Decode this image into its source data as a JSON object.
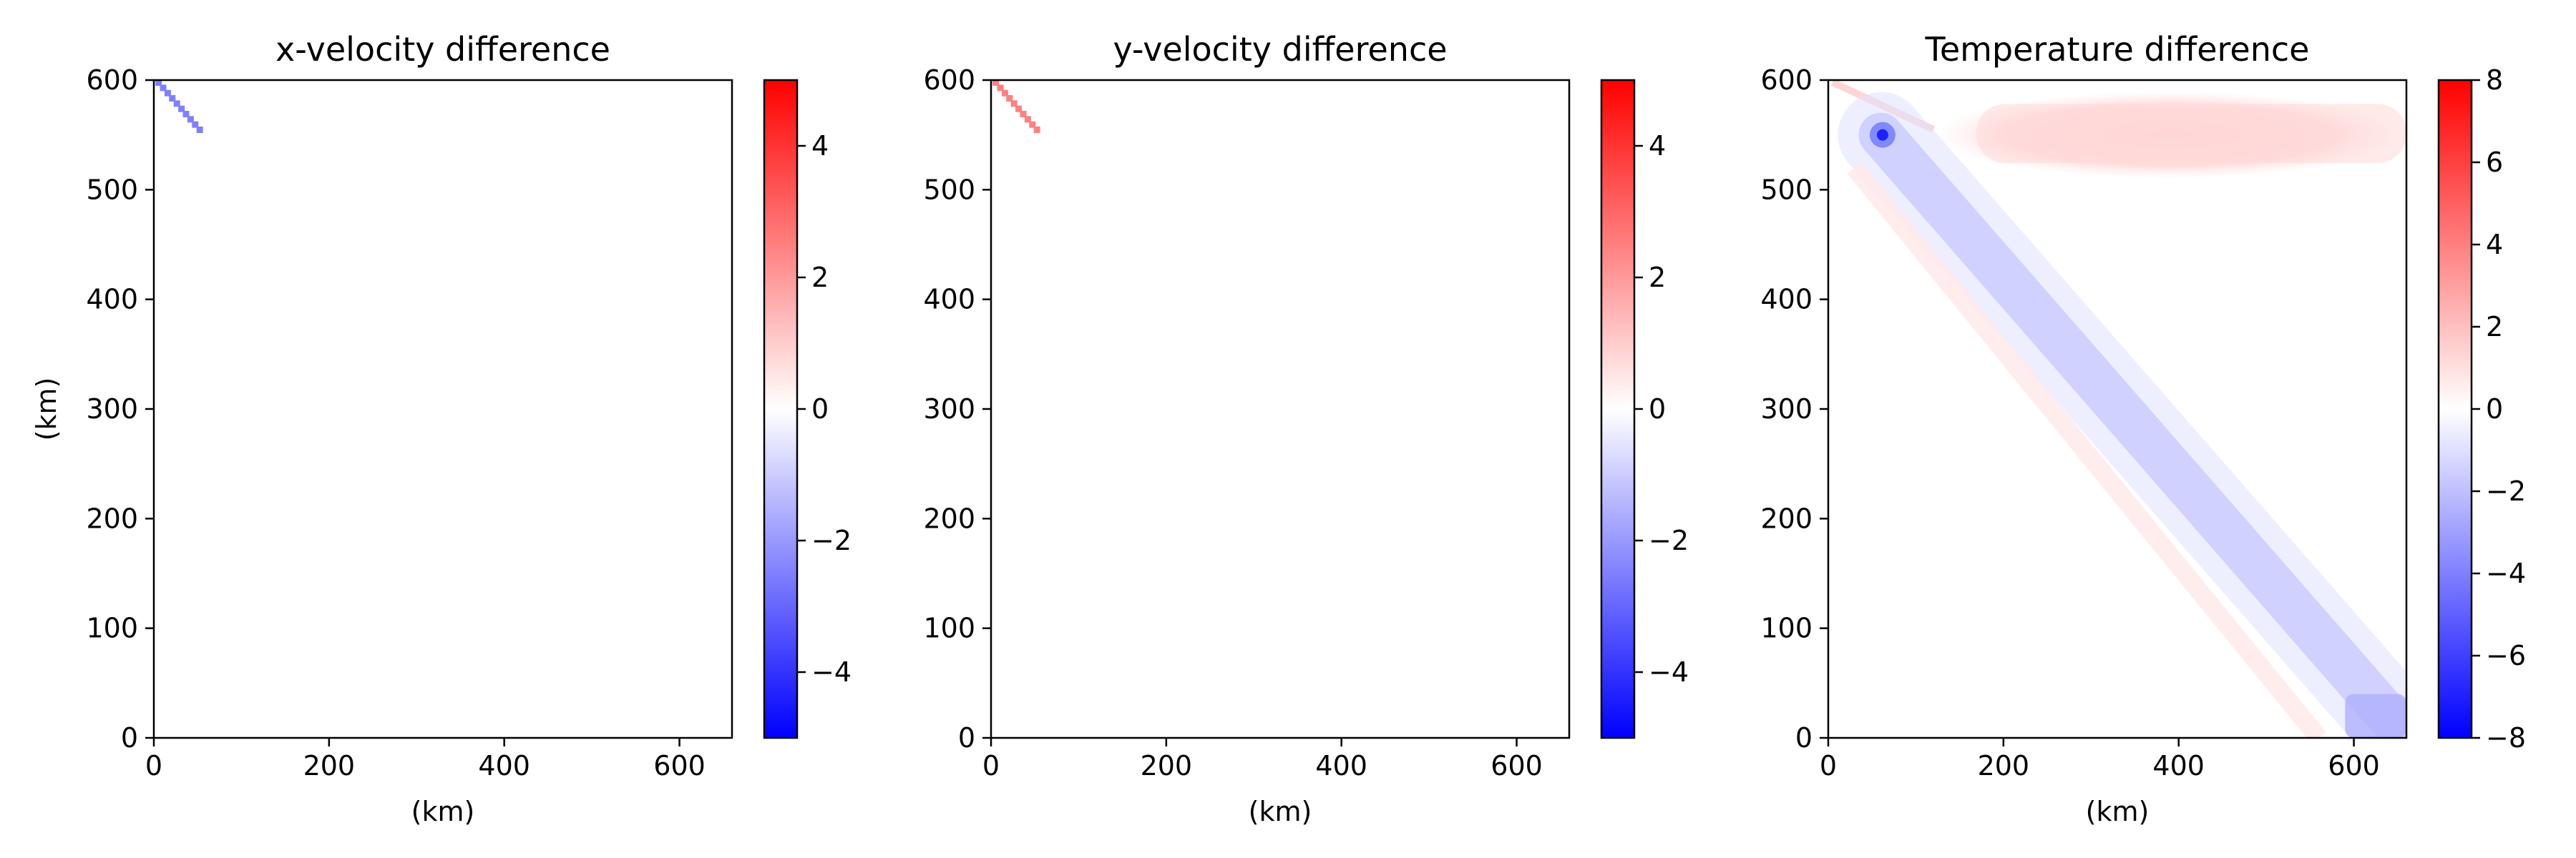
{
  "figure": {
    "colors": {
      "negative": "#0000ff",
      "zero": "#ffffff",
      "positive": "#ff0000"
    },
    "colormap": "bwr"
  },
  "chart_data": [
    {
      "type": "heatmap",
      "title": "x-velocity difference",
      "xlabel": "(km)",
      "ylabel": "(km)",
      "xlim": [
        0,
        660
      ],
      "ylim": [
        0,
        600
      ],
      "xticks": [
        0,
        200,
        400,
        600
      ],
      "yticks": [
        0,
        100,
        200,
        300,
        400,
        500,
        600
      ],
      "colorbar": {
        "range": [
          -5,
          5
        ],
        "ticks": [
          -4,
          -2,
          0,
          2,
          4
        ],
        "tick_labels": [
          "−4",
          "−2",
          "0",
          "2",
          "4"
        ]
      },
      "features": [
        {
          "kind": "diagonal-streak",
          "from": [
            5,
            598
          ],
          "to": [
            52,
            555
          ],
          "value": -2.5
        }
      ]
    },
    {
      "type": "heatmap",
      "title": "y-velocity difference",
      "xlabel": "(km)",
      "ylabel": "",
      "xlim": [
        0,
        660
      ],
      "ylim": [
        0,
        600
      ],
      "xticks": [
        0,
        200,
        400,
        600
      ],
      "yticks": [
        0,
        100,
        200,
        300,
        400,
        500,
        600
      ],
      "colorbar": {
        "range": [
          -5,
          5
        ],
        "ticks": [
          -4,
          -2,
          0,
          2,
          4
        ],
        "tick_labels": [
          "−4",
          "−2",
          "0",
          "2",
          "4"
        ]
      },
      "features": [
        {
          "kind": "diagonal-streak",
          "from": [
            5,
            598
          ],
          "to": [
            52,
            555
          ],
          "value": 2.5
        }
      ]
    },
    {
      "type": "heatmap",
      "title": "Temperature difference",
      "xlabel": "(km)",
      "ylabel": "",
      "xlim": [
        0,
        660
      ],
      "ylim": [
        0,
        600
      ],
      "xticks": [
        0,
        200,
        400,
        600
      ],
      "yticks": [
        0,
        100,
        200,
        300,
        400,
        500,
        600
      ],
      "colorbar": {
        "range": [
          -8,
          8
        ],
        "ticks": [
          -8,
          -6,
          -4,
          -2,
          0,
          2,
          4,
          6,
          8
        ],
        "tick_labels": [
          "−8",
          "−6",
          "−4",
          "−2",
          "0",
          "2",
          "4",
          "6",
          "8"
        ]
      },
      "features": [
        {
          "kind": "warm-band",
          "x_range": [
            120,
            660
          ],
          "y_range": [
            510,
            590
          ],
          "value": 1.2
        },
        {
          "kind": "cold-diagonal-band",
          "from": [
            60,
            550
          ],
          "to": [
            650,
            10
          ],
          "value": -1.6
        },
        {
          "kind": "cold-spot",
          "at": [
            62,
            550
          ],
          "value": -7
        },
        {
          "kind": "cold-patch",
          "x_range": [
            590,
            660
          ],
          "y_range": [
            0,
            40
          ],
          "value": -2.5
        }
      ]
    }
  ]
}
